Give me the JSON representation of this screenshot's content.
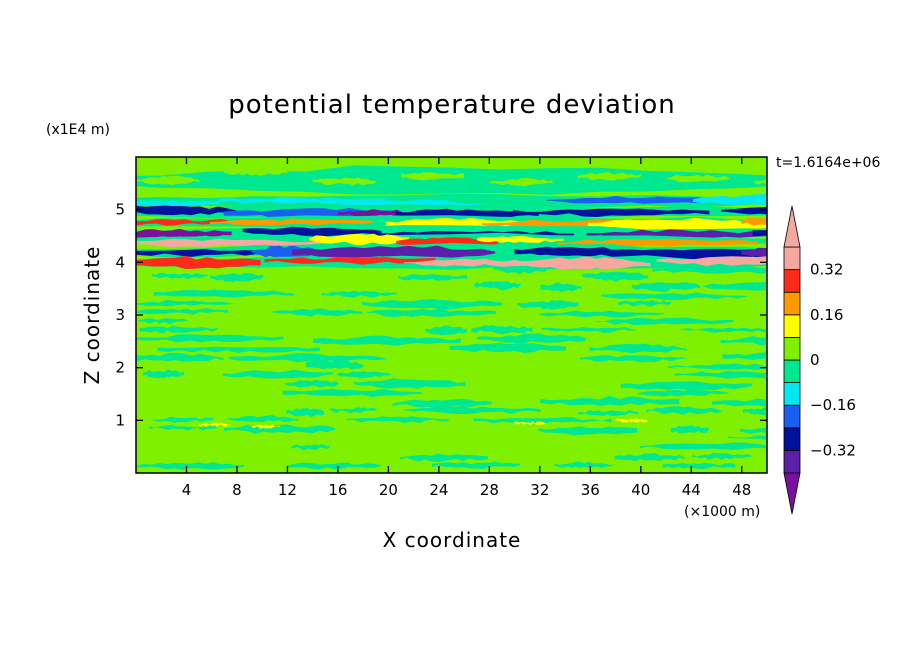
{
  "chart_data": {
    "type": "heatmap",
    "title": "potential temperature deviation",
    "xlabel": "X coordinate",
    "ylabel": "Z coordinate",
    "x_unit": "(×1000 m)",
    "y_unit": "(x1E4 m)",
    "time_label": "t=1.6164e+06",
    "xlim": [
      0,
      50
    ],
    "ylim": [
      0,
      6
    ],
    "x_ticks": [
      4,
      8,
      12,
      16,
      20,
      24,
      28,
      32,
      36,
      40,
      44,
      48
    ],
    "y_ticks": [
      1,
      2,
      3,
      4,
      5
    ],
    "colorbar": {
      "levels": [
        -0.4,
        -0.32,
        -0.24,
        -0.16,
        -0.08,
        0,
        0.08,
        0.16,
        0.24,
        0.32,
        0.4
      ],
      "tick_labels": [
        "0.32",
        "0.16",
        "0",
        "−0.16",
        "−0.32"
      ],
      "tick_values": [
        0.32,
        0.16,
        0,
        -0.16,
        -0.32
      ],
      "colors": [
        "#7a0fa0",
        "#5b1fa8",
        "#00129c",
        "#1a5ef2",
        "#00e8f0",
        "#00e88f",
        "#7ff000",
        "#ffff00",
        "#ff9900",
        "#ff2a1a",
        "#f5a8a0"
      ]
    },
    "fields": {
      "layer_bands": [
        {
          "z": 5.15,
          "kind": "mixed"
        },
        {
          "z": 4.95,
          "kind": "negative"
        },
        {
          "z": 4.75,
          "kind": "positive"
        },
        {
          "z": 4.55,
          "kind": "negative"
        },
        {
          "z": 4.4,
          "kind": "positive"
        },
        {
          "z": 4.2,
          "kind": "negative"
        },
        {
          "z": 4.0,
          "kind": "positive"
        }
      ]
    }
  }
}
